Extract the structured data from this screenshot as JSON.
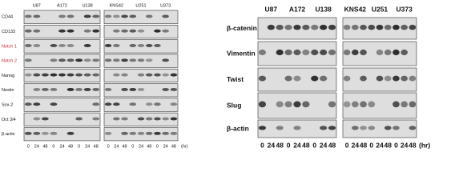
{
  "left_panel": {
    "cell_lines": [
      "U87",
      "A172",
      "U138",
      "KNS42",
      "U251",
      "U373"
    ],
    "rows": [
      "CD44",
      "CD133",
      "Notch 1",
      "Notch 2",
      "Nanog",
      "Nestin",
      "Sox-2",
      "Oct 3/4",
      "β-actin"
    ],
    "time_points": [
      "0",
      "24",
      "48",
      "0",
      "24",
      "48",
      "0",
      "24",
      "48",
      "0",
      "24",
      "48",
      "0",
      "24",
      "48",
      "0",
      "24",
      "48"
    ],
    "unit": "(hr)"
  },
  "right_panel": {
    "cell_lines": [
      "U87",
      "A172",
      "U138",
      "KNS42",
      "U251",
      "U373"
    ],
    "rows": [
      "β-catenin",
      "Vimentin",
      "Twist",
      "Slug",
      "β-actin"
    ],
    "time_points": [
      "0",
      "24",
      "48",
      "0",
      "24",
      "48",
      "0",
      "24",
      "48",
      "0",
      "24",
      "48",
      "0",
      "24",
      "48",
      "0",
      "24",
      "48"
    ],
    "unit": "(hr)"
  }
}
